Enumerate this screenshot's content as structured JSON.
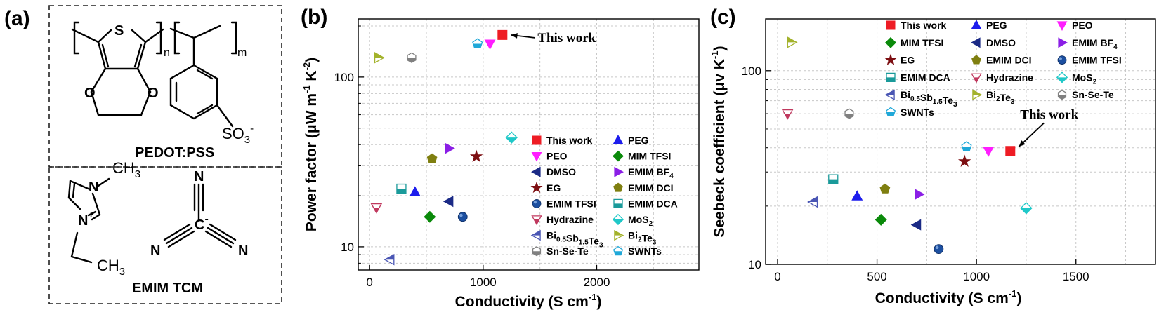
{
  "panel_a": {
    "label": "(a)",
    "pedot_pss": {
      "name": "PEDOT:PSS",
      "s_atom": "S",
      "o_atom": "O",
      "so3": "SO",
      "so3_sub": "3",
      "so3_charge": "-",
      "n": "n",
      "m": "m"
    },
    "emim_tcm": {
      "name": "EMIM TCM",
      "ch3": "CH",
      "ch3_sub": "3",
      "n_atom": "N",
      "n_plus": "N",
      "plus": "+",
      "c_atom": "C",
      "minus": "-"
    }
  },
  "chart_data": [
    {
      "panel": "(b)",
      "type": "scatter",
      "xlabel": "Conductivity (S cm",
      "xlabel_sup": "-1",
      "xlabel_end": ")",
      "ylabel": "Power factor (μW m",
      "ylabel_sup1": "-1",
      "ylabel_mid": " K",
      "ylabel_sup2": "-2",
      "ylabel_end": ")",
      "xlim": [
        -100,
        2900
      ],
      "ylim": [
        7.3,
        220
      ],
      "yscale": "log",
      "xticks": [
        0,
        1000,
        2000
      ],
      "xtick_labels": [
        "0",
        "1000",
        "2000"
      ],
      "yticks": [
        10,
        100
      ],
      "ytick_labels": [
        "10",
        "100"
      ],
      "grid": true,
      "legend_placement": "bottom-right",
      "annotation": "This work",
      "series": [
        {
          "name": "This work",
          "x": 1170,
          "y": 177,
          "marker": "square",
          "color": "#ee1c24",
          "filled": true
        },
        {
          "name": "PEG",
          "x": 400,
          "y": 21,
          "marker": "triangle-up",
          "color": "#1d1ded",
          "filled": true
        },
        {
          "name": "PEO",
          "x": 1060,
          "y": 157,
          "marker": "triangle-down",
          "color": "#ff1dff",
          "filled": true
        },
        {
          "name": "MIM TFSI",
          "x": 530,
          "y": 15,
          "marker": "diamond",
          "color": "#0a8a0a",
          "filled": true
        },
        {
          "name": "DMSO",
          "x": 700,
          "y": 18.5,
          "marker": "triangle-left",
          "color": "#1b2a86",
          "filled": true
        },
        {
          "name": "EMIM BF4",
          "x": 700,
          "y": 38,
          "marker": "triangle-right",
          "color": "#8b1ee6",
          "filled": true
        },
        {
          "name": "EG",
          "x": 940,
          "y": 34,
          "marker": "star",
          "color": "#7d0f12",
          "filled": true
        },
        {
          "name": "EMIM DCI",
          "x": 550,
          "y": 33,
          "marker": "pentagon",
          "color": "#7f7f10",
          "filled": true
        },
        {
          "name": "EMIM TFSI",
          "x": 820,
          "y": 15,
          "marker": "sphere",
          "color": "#1c4fa0",
          "filled": true
        },
        {
          "name": "EMIM DCA",
          "x": 280,
          "y": 22,
          "marker": "square-half",
          "color": "#1a9a9a",
          "filled": false
        },
        {
          "name": "Hydrazine",
          "x": 60,
          "y": 17,
          "marker": "triangle-down-half",
          "color": "#c0385e",
          "filled": false
        },
        {
          "name": "MoS2",
          "x": 1250,
          "y": 44,
          "marker": "diamond-half",
          "color": "#1fc8c8",
          "filled": false
        },
        {
          "name": "Bi0.5Sb1.5Te3",
          "x": 180,
          "y": 8.4,
          "marker": "triangle-left-half",
          "color": "#4a56b4",
          "filled": false
        },
        {
          "name": "Bi2Te3",
          "x": 80,
          "y": 130,
          "marker": "triangle-right-half",
          "color": "#a3b22b",
          "filled": false
        },
        {
          "name": "Sn-Se-Te",
          "x": 370,
          "y": 130,
          "marker": "hexagon-half",
          "color": "#808080",
          "filled": false
        },
        {
          "name": "SWNTs",
          "x": 950,
          "y": 157,
          "marker": "pentagon-half",
          "color": "#20a8d8",
          "filled": false
        }
      ],
      "legend_entries": [
        {
          "text": "This work",
          "series": 0
        },
        {
          "text": "PEG",
          "series": 1
        },
        {
          "text": "PEO",
          "series": 2
        },
        {
          "text": "MIM TFSI",
          "series": 3
        },
        {
          "text": "DMSO",
          "series": 4
        },
        {
          "text": "EMIM BF",
          "sub": "4",
          "series": 5
        },
        {
          "text": "EG",
          "series": 6
        },
        {
          "text": "EMIM DCI",
          "series": 7
        },
        {
          "text": "EMIM TFSI",
          "series": 8
        },
        {
          "text": "EMIM DCA",
          "series": 9
        },
        {
          "text": "Hydrazine",
          "series": 10
        },
        {
          "text": "MoS",
          "sub": "2",
          "series": 11
        },
        {
          "text": "Bi",
          "sub": "0.5",
          "text2": "Sb",
          "sub2": "1.5",
          "text3": "Te",
          "sub3": "3",
          "series": 12
        },
        {
          "text": "Bi",
          "sub": "2",
          "text2": "Te",
          "sub2": "3",
          "series": 13
        },
        {
          "text": "Sn-Se-Te",
          "series": 14
        },
        {
          "text": "SWNTs",
          "series": 15
        }
      ]
    },
    {
      "panel": "(c)",
      "type": "scatter",
      "xlabel": "Conductivity (S cm",
      "xlabel_sup": "-1",
      "xlabel_end": ")",
      "ylabel": "Seebeck coefficient (μv K",
      "ylabel_sup1": "-1",
      "ylabel_end": ")",
      "xlim": [
        -60,
        1900
      ],
      "ylim": [
        10,
        185
      ],
      "yscale": "log",
      "xticks": [
        0,
        500,
        1000,
        1500
      ],
      "xtick_labels": [
        "0",
        "500",
        "1000",
        "1500"
      ],
      "yticks": [
        10,
        100
      ],
      "ytick_labels": [
        "10",
        "100"
      ],
      "grid": true,
      "legend_placement": "top-right",
      "annotation": "This work",
      "series": [
        {
          "name": "This work",
          "x": 1170,
          "y": 38.5,
          "marker": "square",
          "color": "#ee1c24",
          "filled": true
        },
        {
          "name": "PEG",
          "x": 400,
          "y": 22.5,
          "marker": "triangle-up",
          "color": "#1d1ded",
          "filled": true
        },
        {
          "name": "PEO",
          "x": 1060,
          "y": 38.5,
          "marker": "triangle-down",
          "color": "#ff1dff",
          "filled": true
        },
        {
          "name": "MIM TFSI",
          "x": 520,
          "y": 17,
          "marker": "diamond",
          "color": "#0a8a0a",
          "filled": true
        },
        {
          "name": "DMSO",
          "x": 700,
          "y": 16,
          "marker": "triangle-left",
          "color": "#1b2a86",
          "filled": true
        },
        {
          "name": "EMIM BF4",
          "x": 710,
          "y": 23,
          "marker": "triangle-right",
          "color": "#8b1ee6",
          "filled": true
        },
        {
          "name": "EG",
          "x": 940,
          "y": 34,
          "marker": "star",
          "color": "#7d0f12",
          "filled": true
        },
        {
          "name": "EMIM DCI",
          "x": 540,
          "y": 24.5,
          "marker": "pentagon",
          "color": "#7f7f10",
          "filled": true
        },
        {
          "name": "EMIM TFSI",
          "x": 810,
          "y": 12,
          "marker": "sphere",
          "color": "#1c4fa0",
          "filled": true
        },
        {
          "name": "EMIM DCA",
          "x": 280,
          "y": 27.5,
          "marker": "square-half",
          "color": "#1a9a9a",
          "filled": false
        },
        {
          "name": "Hydrazine",
          "x": 50,
          "y": 60,
          "marker": "triangle-down-half",
          "color": "#c0385e",
          "filled": false
        },
        {
          "name": "MoS2",
          "x": 1250,
          "y": 19.5,
          "marker": "diamond-half",
          "color": "#1fc8c8",
          "filled": false
        },
        {
          "name": "Bi0.5Sb1.5Te3",
          "x": 180,
          "y": 21,
          "marker": "triangle-left-half",
          "color": "#4a56b4",
          "filled": false
        },
        {
          "name": "Bi2Te3",
          "x": 70,
          "y": 140,
          "marker": "triangle-right-half",
          "color": "#a3b22b",
          "filled": false
        },
        {
          "name": "Sn-Se-Te",
          "x": 360,
          "y": 60,
          "marker": "hexagon-half",
          "color": "#808080",
          "filled": false
        },
        {
          "name": "SWNTs",
          "x": 950,
          "y": 40.5,
          "marker": "pentagon-half",
          "color": "#20a8d8",
          "filled": false
        }
      ],
      "legend_entries": [
        {
          "text": "This work",
          "series": 0
        },
        {
          "text": "PEG",
          "series": 1
        },
        {
          "text": "PEO",
          "series": 2
        },
        {
          "text": "MIM TFSI",
          "series": 3
        },
        {
          "text": "DMSO",
          "series": 4
        },
        {
          "text": "EMIM BF",
          "sub": "4",
          "series": 5
        },
        {
          "text": "EG",
          "series": 6
        },
        {
          "text": "EMIM DCI",
          "series": 7
        },
        {
          "text": "EMIM TFSI",
          "series": 8
        },
        {
          "text": "EMIM DCA",
          "series": 9
        },
        {
          "text": "Hydrazine",
          "series": 10
        },
        {
          "text": "MoS",
          "sub": "2",
          "series": 11
        },
        {
          "text": "Bi",
          "sub": "0.5",
          "text2": "Sb",
          "sub2": "1.5",
          "text3": "Te",
          "sub3": "3",
          "series": 12
        },
        {
          "text": "Bi",
          "sub": "2",
          "text2": "Te",
          "sub2": "3",
          "series": 13
        },
        {
          "text": "Sn-Se-Te",
          "series": 14
        },
        {
          "text": "SWNTs",
          "series": 15
        }
      ]
    }
  ]
}
